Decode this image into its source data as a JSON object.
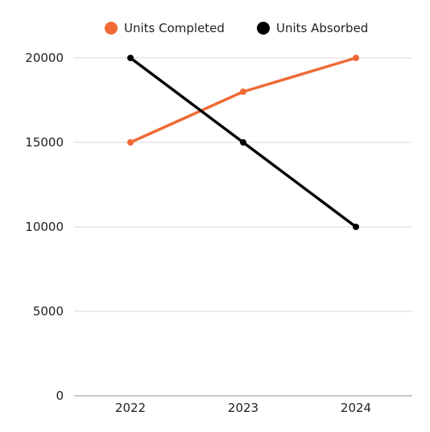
{
  "chart_data": {
    "type": "line",
    "title": "",
    "xlabel": "",
    "ylabel": "",
    "categories": [
      "2022",
      "2023",
      "2024"
    ],
    "series": [
      {
        "name": "Units Completed",
        "values": [
          15000,
          18000,
          20000
        ],
        "color": "#f06a35"
      },
      {
        "name": "Units Absorbed",
        "values": [
          20000,
          15000,
          10000
        ],
        "color": "#000000"
      }
    ],
    "ylim": [
      0,
      20000
    ],
    "yticks": [
      0,
      5000,
      10000,
      15000,
      20000
    ],
    "grid": true,
    "legend_position": "top-center"
  }
}
